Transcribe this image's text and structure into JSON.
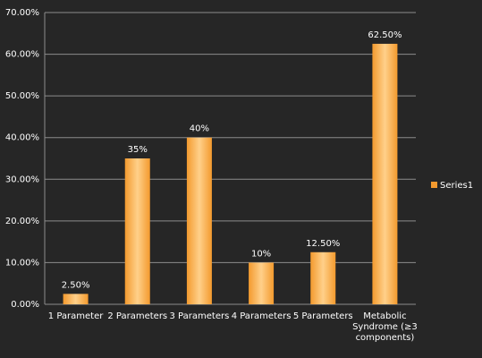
{
  "chart_data": {
    "type": "bar",
    "categories": [
      "1 Parameter",
      "2 Parameters",
      "3 Parameters",
      "4 Parameters",
      "5 Parameters",
      "Metabolic Syndrome (≥3 components)"
    ],
    "series": [
      {
        "name": "Series1",
        "color": "#f39a2e",
        "values": [
          2.5,
          35,
          40,
          10,
          12.5,
          62.5
        ],
        "value_labels": [
          "2.50%",
          "35%",
          "40%",
          "10%",
          "12.50%",
          "62.50%"
        ]
      }
    ],
    "ylim": [
      0,
      70
    ],
    "yticks": [
      {
        "value": 0,
        "label": "0.00%"
      },
      {
        "value": 10,
        "label": "10.00%"
      },
      {
        "value": 20,
        "label": "20.00%"
      },
      {
        "value": 30,
        "label": "30.00%"
      },
      {
        "value": 40,
        "label": "40.00%"
      },
      {
        "value": 50,
        "label": "50.00%"
      },
      {
        "value": 60,
        "label": "60.00%"
      },
      {
        "value": 70,
        "label": "70.00%"
      }
    ],
    "grid": true,
    "legend": "right"
  }
}
